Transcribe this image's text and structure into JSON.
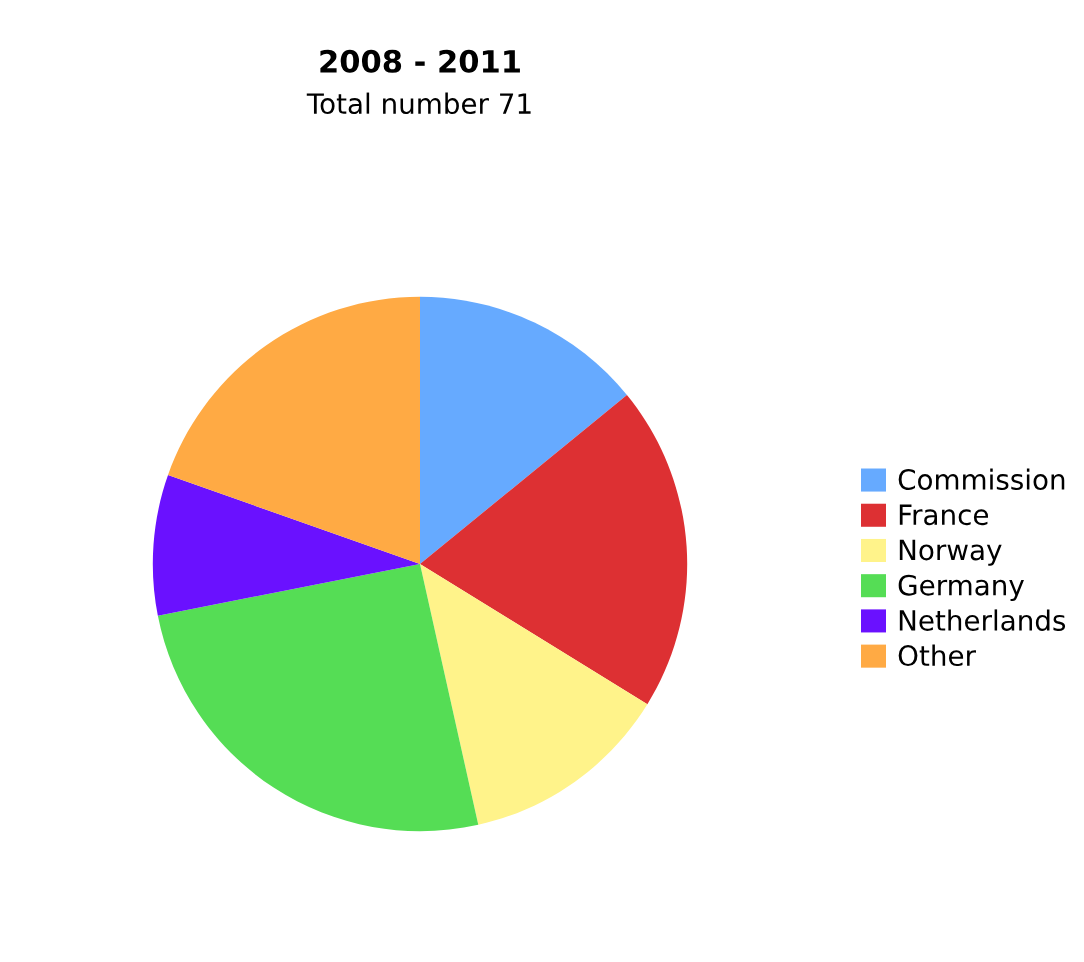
{
  "chart_data": {
    "type": "pie",
    "title": "2008 - 2011",
    "subtitle": "Total number 71",
    "categories": [
      "Commission",
      "France",
      "Norway",
      "Germany",
      "Netherlands",
      "Other"
    ],
    "values": [
      14.1,
      19.7,
      12.7,
      25.4,
      8.5,
      19.6
    ],
    "colors": [
      "#66aaff",
      "#dd3033",
      "#fff38a",
      "#55dd55",
      "#6a11ff",
      "#ffaa44"
    ],
    "legend": "right"
  }
}
